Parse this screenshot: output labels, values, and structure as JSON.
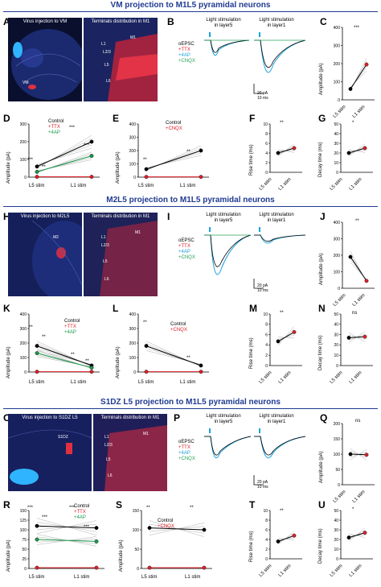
{
  "sections": [
    {
      "title": "VM projection to M1L5 pyramidal neurons"
    },
    {
      "title": "M2L5 projection to M1L5 pyramidal neurons"
    },
    {
      "title": "S1DZ L5 projection to M1L5 pyramidal neurons"
    }
  ],
  "panels": {
    "A": {
      "label": "A",
      "left_caption": "Virus injection to VM",
      "right_caption": "Terminals distribution in M1",
      "anno_vm": "VM",
      "layers": [
        "M1",
        "L1",
        "L2/3",
        "L5",
        "L6"
      ]
    },
    "B": {
      "label": "B",
      "trace1": "Light stimulation\nin layer5",
      "trace2": "Light stimulation\nin layer1",
      "legend": [
        "oEPSC",
        "+TTX",
        "+4AP",
        "+CNQX"
      ],
      "scale": "20 pA\n10 ms"
    },
    "C": {
      "label": "C",
      "ylabel": "Amplitude (pA)",
      "x": [
        "L5 stim",
        "L1 stim"
      ],
      "sig": "***"
    },
    "D": {
      "label": "D",
      "ylabel": "Amplitude (pA)",
      "legend": [
        "Control",
        "+TTX",
        "+4AP"
      ],
      "x": [
        "L5 stim",
        "L1 stim"
      ],
      "sig": [
        "***",
        "**",
        "***",
        "***"
      ]
    },
    "E": {
      "label": "E",
      "ylabel": "Amplitude (pA)",
      "legend": [
        "Control",
        "+CNQX"
      ],
      "x": [
        "L5 stim",
        "L1 stim"
      ],
      "sig": [
        "**",
        "**"
      ]
    },
    "F": {
      "label": "F",
      "ylabel": "Rise time (ms)",
      "x": [
        "L5 stim",
        "L1 stim"
      ],
      "sig": "**"
    },
    "G": {
      "label": "G",
      "ylabel": "Decay time (ms)",
      "x": [
        "L5 stim",
        "L1 stim"
      ],
      "sig": "*"
    },
    "H": {
      "label": "H",
      "left_caption": "Virus injection to M2L5",
      "right_caption": "Terminals distribution in M1",
      "anno": "M2",
      "layers": [
        "M1",
        "L1",
        "L2/3",
        "L5",
        "L6"
      ]
    },
    "I": {
      "label": "I",
      "trace1": "Light stimulation\nin layer5",
      "trace2": "Light stimulation\nin layer1",
      "legend": [
        "oEPSC",
        "+TTX",
        "+4AP",
        "+CNQX"
      ],
      "scale": "20 pA\n10 ms"
    },
    "J": {
      "label": "J",
      "ylabel": "Amplitude (pA)",
      "x": [
        "L5 stim",
        "L1 stim"
      ],
      "sig": "**"
    },
    "K": {
      "label": "K",
      "ylabel": "Amplitude (pA)",
      "legend": [
        "Control",
        "+TTX",
        "+4AP"
      ],
      "x": [
        "L5 stim",
        "L1 stim"
      ],
      "sig": [
        "**",
        "**",
        "**",
        "**"
      ]
    },
    "L": {
      "label": "L",
      "ylabel": "Amplitude (pA)",
      "legend": [
        "Control",
        "+CNQX"
      ],
      "x": [
        "L5 stim",
        "L1 stim"
      ],
      "sig": [
        "**",
        "**"
      ]
    },
    "M": {
      "label": "M",
      "ylabel": "Rise time (ms)",
      "x": [
        "L5 stim",
        "L1 stim"
      ],
      "sig": "**"
    },
    "N": {
      "label": "N",
      "ylabel": "Decay time (ms)",
      "x": [
        "L5 stim",
        "L1 stim"
      ],
      "sig": "ns"
    },
    "O": {
      "label": "O",
      "left_caption": "Virus injection to S1DZ L5",
      "right_caption": "Terminals distribution in M1",
      "anno": "S1DZ",
      "layers": [
        "M1",
        "L1",
        "L2/3",
        "L5",
        "L6"
      ]
    },
    "P": {
      "label": "P",
      "trace1": "Light stimulation\nin layer5",
      "trace2": "Light stimulation\nin layer1",
      "legend": [
        "oEPSC",
        "+TTX",
        "+4AP",
        "+CNQX"
      ],
      "scale": "20 pA\n10 ms"
    },
    "Q": {
      "label": "Q",
      "ylabel": "Amplitude (pA)",
      "x": [
        "L5 stim",
        "L1 stim"
      ],
      "sig": "ns"
    },
    "R": {
      "label": "R",
      "ylabel": "Amplitude (pA)",
      "legend": [
        "Control",
        "+TTX",
        "+4AP"
      ],
      "x": [
        "L5 stim",
        "L1 stim"
      ],
      "sig": [
        "***",
        "***",
        "***",
        "***"
      ]
    },
    "S": {
      "label": "S",
      "ylabel": "Amplitude (pA)",
      "legend": [
        "Control",
        "+CNQX"
      ],
      "x": [
        "L5 stim",
        "L1 stim"
      ],
      "sig": [
        "**",
        "**"
      ]
    },
    "T": {
      "label": "T",
      "ylabel": "Rise time (ms)",
      "x": [
        "L5 stim",
        "L1 stim"
      ],
      "sig": "**"
    },
    "U": {
      "label": "U",
      "ylabel": "Decay time (ms)",
      "x": [
        "L5 stim",
        "L1 stim"
      ],
      "sig": "*"
    }
  },
  "colors": {
    "control": "#000000",
    "ttx": "#e0202a",
    "ap4": "#1a9a4a",
    "cnqx": "#e0202a",
    "trace_blue": "#1aa3d8",
    "trace_green": "#2aa35a",
    "title": "#1f3a93"
  },
  "chart_data": [
    {
      "type": "line",
      "panel": "C",
      "categories": [
        "L5 stim",
        "L1 stim"
      ],
      "values": [
        60,
        195
      ],
      "ylabel": "Amplitude (pA)",
      "ylim": [
        0,
        400
      ],
      "yticks": [
        0,
        100,
        200,
        300,
        400
      ]
    },
    {
      "type": "line",
      "panel": "D",
      "categories": [
        "L5 stim",
        "L1 stim"
      ],
      "series": [
        {
          "name": "Control",
          "values": [
            60,
            200
          ]
        },
        {
          "name": "+TTX",
          "values": [
            2,
            2
          ]
        },
        {
          "name": "+4AP",
          "values": [
            30,
            120
          ]
        }
      ],
      "ylabel": "Amplitude (pA)",
      "ylim": [
        0,
        300
      ],
      "yticks": [
        0,
        100,
        200,
        300
      ]
    },
    {
      "type": "line",
      "panel": "E",
      "categories": [
        "L5 stim",
        "L1 stim"
      ],
      "series": [
        {
          "name": "Control",
          "values": [
            60,
            200
          ]
        },
        {
          "name": "+CNQX",
          "values": [
            2,
            2
          ]
        }
      ],
      "ylabel": "Amplitude (pA)",
      "ylim": [
        0,
        400
      ],
      "yticks": [
        0,
        100,
        200,
        300,
        400
      ]
    },
    {
      "type": "line",
      "panel": "F",
      "categories": [
        "L5 stim",
        "L1 stim"
      ],
      "values": [
        4.0,
        5.0
      ],
      "ylabel": "Rise time (ms)",
      "ylim": [
        0,
        10
      ],
      "yticks": [
        0,
        2,
        4,
        6,
        8,
        10
      ]
    },
    {
      "type": "line",
      "panel": "G",
      "categories": [
        "L5 stim",
        "L1 stim"
      ],
      "values": [
        20,
        25
      ],
      "ylabel": "Decay time (ms)",
      "ylim": [
        0,
        50
      ],
      "yticks": [
        0,
        10,
        20,
        30,
        40,
        50
      ]
    },
    {
      "type": "line",
      "panel": "J",
      "categories": [
        "L5 stim",
        "L1 stim"
      ],
      "values": [
        190,
        45
      ],
      "ylabel": "Amplitude (pA)",
      "ylim": [
        0,
        400
      ],
      "yticks": [
        0,
        100,
        200,
        300,
        400
      ]
    },
    {
      "type": "line",
      "panel": "K",
      "categories": [
        "L5 stim",
        "L1 stim"
      ],
      "series": [
        {
          "name": "Control",
          "values": [
            180,
            45
          ]
        },
        {
          "name": "+TTX",
          "values": [
            2,
            2
          ]
        },
        {
          "name": "+4AP",
          "values": [
            130,
            30
          ]
        }
      ],
      "ylabel": "Amplitude (pA)",
      "ylim": [
        0,
        400
      ],
      "yticks": [
        0,
        100,
        200,
        300,
        400
      ]
    },
    {
      "type": "line",
      "panel": "L",
      "categories": [
        "L5 stim",
        "L1 stim"
      ],
      "series": [
        {
          "name": "Control",
          "values": [
            180,
            45
          ]
        },
        {
          "name": "+CNQX",
          "values": [
            2,
            2
          ]
        }
      ],
      "ylabel": "Amplitude (pA)",
      "ylim": [
        0,
        400
      ],
      "yticks": [
        0,
        100,
        200,
        300,
        400
      ]
    },
    {
      "type": "line",
      "panel": "M",
      "categories": [
        "L5 stim",
        "L1 stim"
      ],
      "values": [
        4.7,
        6.5
      ],
      "ylabel": "Rise time (ms)",
      "ylim": [
        0,
        10
      ],
      "yticks": [
        0,
        2,
        4,
        6,
        8,
        10
      ]
    },
    {
      "type": "line",
      "panel": "N",
      "categories": [
        "L5 stim",
        "L1 stim"
      ],
      "values": [
        27,
        28
      ],
      "ylabel": "Decay time (ms)",
      "ylim": [
        0,
        50
      ],
      "yticks": [
        0,
        10,
        20,
        30,
        40,
        50
      ]
    },
    {
      "type": "line",
      "panel": "Q",
      "categories": [
        "L5 stim",
        "L1 stim"
      ],
      "values": [
        100,
        98
      ],
      "ylabel": "Amplitude (pA)",
      "ylim": [
        0,
        200
      ],
      "yticks": [
        0,
        50,
        100,
        150,
        200
      ]
    },
    {
      "type": "line",
      "panel": "R",
      "categories": [
        "L5 stim",
        "L1 stim"
      ],
      "series": [
        {
          "name": "Control",
          "values": [
            110,
            105
          ]
        },
        {
          "name": "+TTX",
          "values": [
            2,
            2
          ]
        },
        {
          "name": "+4AP",
          "values": [
            75,
            70
          ]
        }
      ],
      "ylabel": "Amplitude (pA)",
      "ylim": [
        0,
        150
      ],
      "yticks": [
        0,
        25,
        50,
        75,
        100,
        125,
        150
      ]
    },
    {
      "type": "line",
      "panel": "S",
      "categories": [
        "L5 stim",
        "L1 stim"
      ],
      "series": [
        {
          "name": "Control",
          "values": [
            105,
            100
          ]
        },
        {
          "name": "+CNQX",
          "values": [
            2,
            2
          ]
        }
      ],
      "ylabel": "Amplitude (pA)",
      "ylim": [
        0,
        150
      ],
      "yticks": [
        0,
        50,
        100,
        150
      ]
    },
    {
      "type": "line",
      "panel": "T",
      "categories": [
        "L5 stim",
        "L1 stim"
      ],
      "values": [
        3.6,
        4.8
      ],
      "ylabel": "Rise time (ms)",
      "ylim": [
        0,
        10
      ],
      "yticks": [
        0,
        2,
        4,
        6,
        8,
        10
      ]
    },
    {
      "type": "line",
      "panel": "U",
      "categories": [
        "L5 stim",
        "L1 stim"
      ],
      "values": [
        22,
        27
      ],
      "ylabel": "Decay time (ms)",
      "ylim": [
        0,
        50
      ],
      "yticks": [
        0,
        10,
        20,
        30,
        40,
        50
      ]
    }
  ]
}
